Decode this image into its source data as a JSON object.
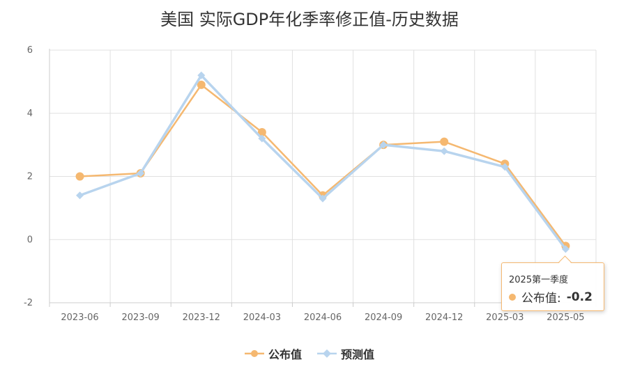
{
  "chart_data": {
    "type": "line",
    "title": "美国 实际GDP年化季率修正值-历史数据",
    "categories": [
      "2023-06",
      "2023-09",
      "2023-12",
      "2024-03",
      "2024-06",
      "2024-09",
      "2024-12",
      "2025-03",
      "2025-05"
    ],
    "series": [
      {
        "name": "公布值",
        "values": [
          2.0,
          2.1,
          4.9,
          3.4,
          1.4,
          3.0,
          3.1,
          2.4,
          -0.2
        ],
        "color": "#f5b870",
        "marker": "circle"
      },
      {
        "name": "预测值",
        "values": [
          1.4,
          2.1,
          5.2,
          3.2,
          1.3,
          3.0,
          2.8,
          2.3,
          -0.3
        ],
        "color": "#b8d4ee",
        "marker": "diamond"
      }
    ],
    "ylim": [
      -2,
      6
    ],
    "yticks": [
      -2,
      0,
      2,
      4,
      6
    ],
    "ytick_labels": [
      "-2",
      "0",
      "2",
      "4",
      "6"
    ],
    "grid": true,
    "legend_position": "bottom"
  },
  "tooltip": {
    "header": "2025第一季度",
    "series_label": "公布值:",
    "value": "-0.2"
  }
}
